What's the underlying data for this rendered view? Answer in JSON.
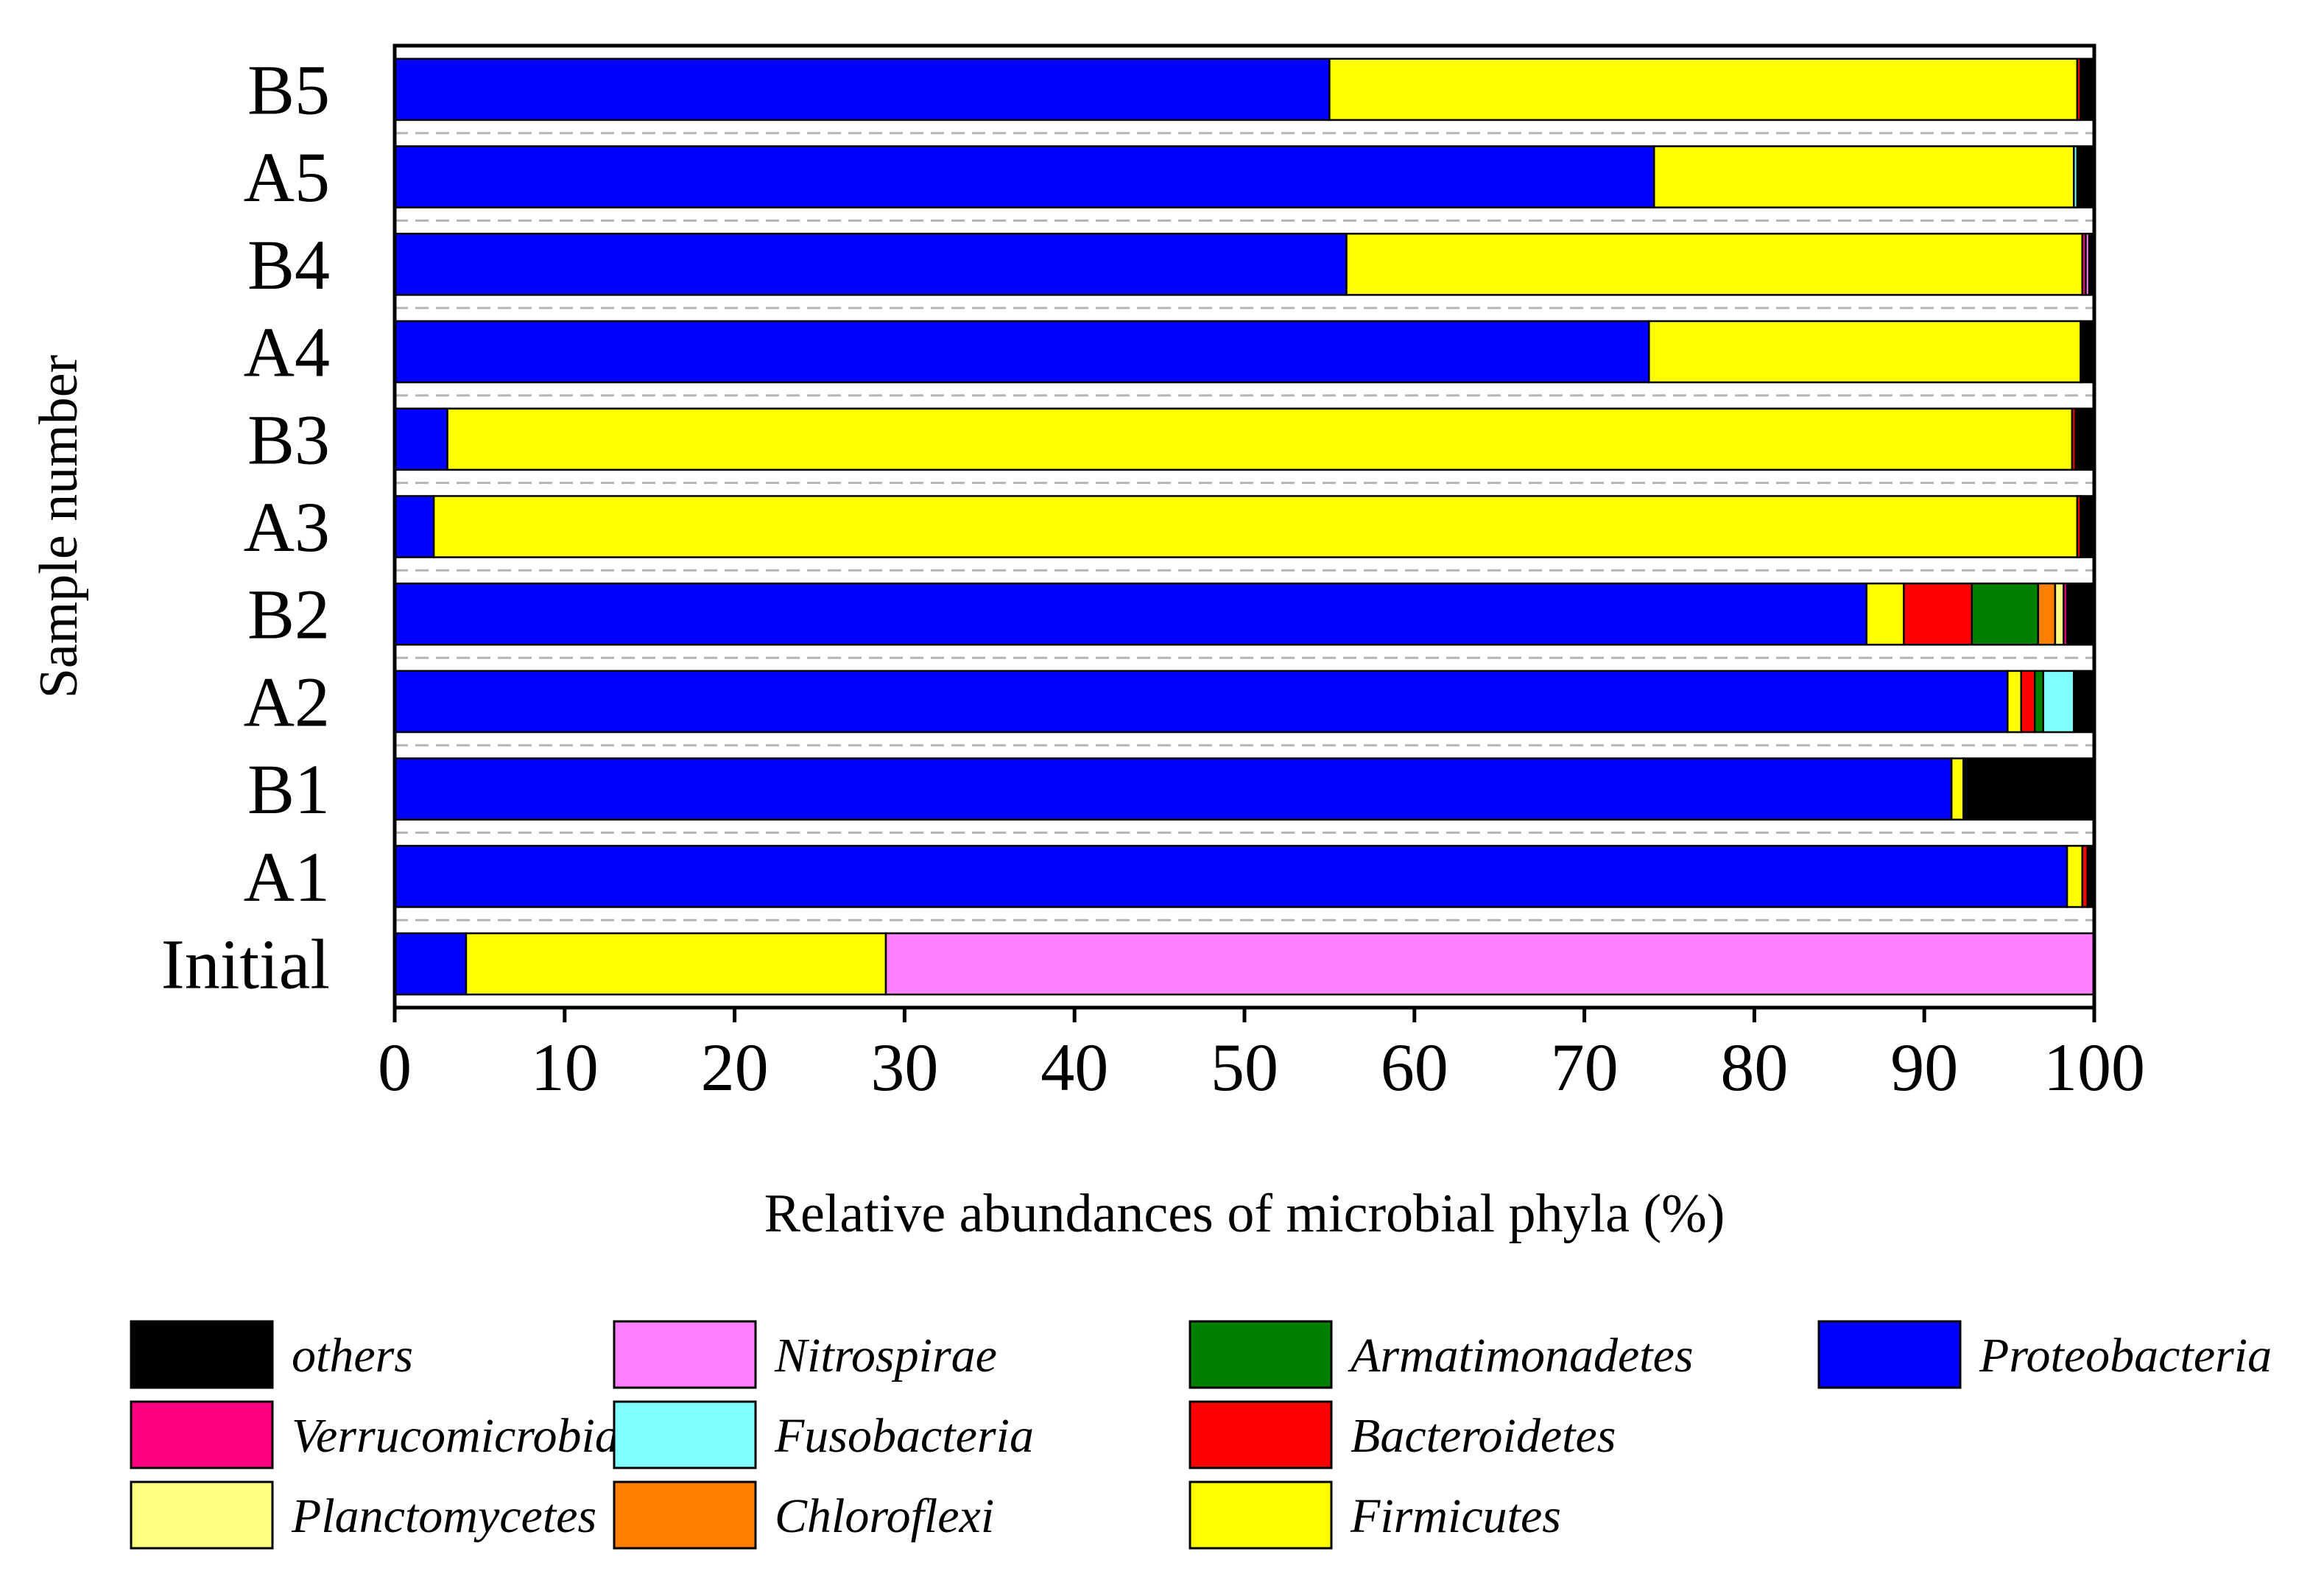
{
  "chart_data": {
    "type": "bar",
    "orientation": "horizontal",
    "stacked": true,
    "xlabel": "Relative abundances of microbial phyla (%)",
    "ylabel": "Sample number",
    "xlim": [
      0,
      100
    ],
    "xticks": [
      0,
      10,
      20,
      30,
      40,
      50,
      60,
      70,
      80,
      90,
      100
    ],
    "categories": [
      "B5",
      "A5",
      "B4",
      "A4",
      "B3",
      "A3",
      "B2",
      "A2",
      "B1",
      "A1",
      "Initial"
    ],
    "legend_position": "bottom",
    "stack_order": [
      "Proteobacteria",
      "Firmicutes",
      "Bacteroidetes",
      "Armatimonadetes",
      "Chloroflexi",
      "Planctomycetes",
      "Verrucomicrobia",
      "Fusobacteria",
      "Nitrospirae",
      "others"
    ],
    "series": [
      {
        "name": "Proteobacteria",
        "color": "#0000FF",
        "values": [
          55.0,
          74.1,
          56.0,
          73.8,
          3.1,
          2.3,
          86.6,
          94.9,
          91.6,
          98.4,
          4.2
        ]
      },
      {
        "name": "Firmicutes",
        "color": "#FFFF00",
        "values": [
          44.0,
          24.7,
          43.3,
          25.4,
          95.6,
          96.7,
          2.2,
          0.8,
          0.7,
          0.9,
          24.7
        ]
      },
      {
        "name": "Bacteroidetes",
        "color": "#FF0000",
        "values": [
          0.2,
          0,
          0,
          0,
          0.2,
          0.2,
          4.0,
          0.8,
          0,
          0.3,
          0
        ]
      },
      {
        "name": "Armatimonadetes",
        "color": "#008000",
        "values": [
          0,
          0,
          0,
          0,
          0,
          0,
          3.9,
          0.5,
          0,
          0,
          0
        ]
      },
      {
        "name": "Chloroflexi",
        "color": "#FF8000",
        "values": [
          0,
          0,
          0,
          0,
          0,
          0,
          1.0,
          0,
          0,
          0,
          0
        ]
      },
      {
        "name": "Planctomycetes",
        "color": "#FFFF80",
        "values": [
          0,
          0,
          0,
          0,
          0,
          0,
          0.5,
          0,
          0,
          0,
          0
        ]
      },
      {
        "name": "Verrucomicrobia",
        "color": "#FF0080",
        "values": [
          0,
          0,
          0.2,
          0,
          0,
          0,
          0.2,
          0,
          0,
          0,
          0
        ]
      },
      {
        "name": "Fusobacteria",
        "color": "#80FFFF",
        "values": [
          0,
          0.2,
          0,
          0,
          0,
          0,
          0,
          1.8,
          0,
          0,
          0
        ]
      },
      {
        "name": "Nitrospirae",
        "color": "#FF80FF",
        "values": [
          0,
          0,
          0.2,
          0,
          0,
          0,
          0,
          0,
          0,
          0,
          71.1
        ]
      },
      {
        "name": "others",
        "color": "#000000",
        "values": [
          0.8,
          1.0,
          0.3,
          0.8,
          1.1,
          0.8,
          1.6,
          1.2,
          7.7,
          0.4,
          0
        ]
      }
    ],
    "legend_order": [
      "others",
      "Verrucomicrobia",
      "Planctomycetes",
      "Nitrospirae",
      "Fusobacteria",
      "Chloroflexi",
      "Armatimonadetes",
      "Bacteroidetes",
      "Firmicutes",
      "Proteobacteria"
    ]
  }
}
